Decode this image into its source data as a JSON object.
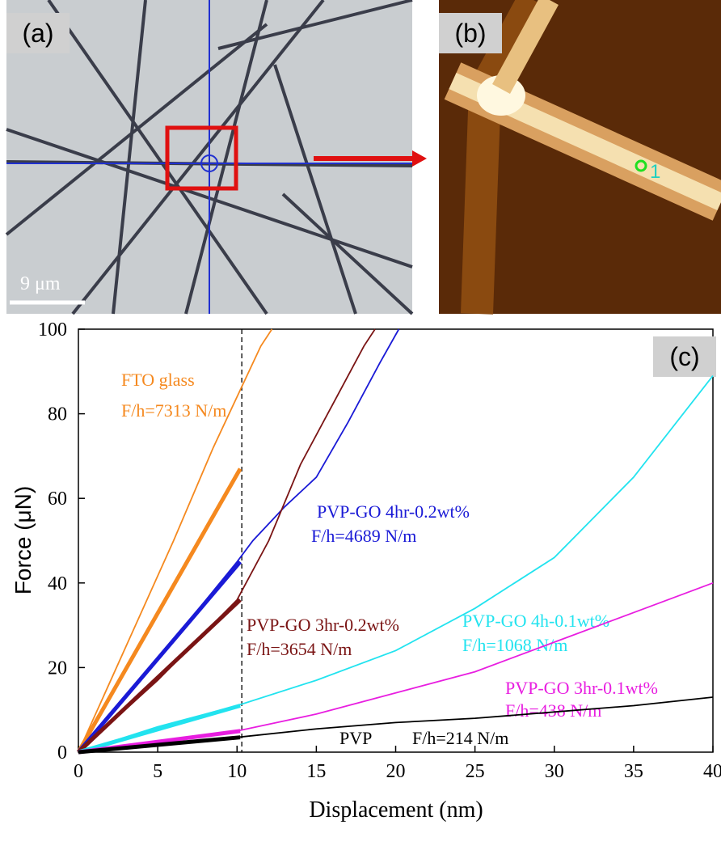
{
  "panels": {
    "a": "(a)",
    "b": "(b)",
    "c": "(c)",
    "scale_bar": "9 μm",
    "marker": "1"
  },
  "chart_data": {
    "type": "line",
    "x_label": "Displacement (nm)",
    "y_label": "Force (μN)",
    "xlim": [
      0,
      40
    ],
    "ylim": [
      0,
      100
    ],
    "xticks": [
      0,
      5,
      10,
      15,
      20,
      25,
      30,
      35,
      40
    ],
    "yticks": [
      0,
      20,
      40,
      60,
      80,
      100
    ],
    "reference_x": 10.3,
    "series": [
      {
        "name": "FTO glass",
        "annotation": "F/h=7313 N/m",
        "color": "#f5891f",
        "x": [
          0,
          3,
          6,
          8.5,
          9.5,
          10.5,
          11.5,
          12.2
        ],
        "values": [
          0,
          25,
          50,
          72,
          80,
          88,
          96,
          100
        ],
        "fit_x": [
          0,
          10.2
        ],
        "fit_values": [
          0,
          67
        ]
      },
      {
        "name": "PVP-GO 4hr-0.2wt%",
        "annotation": "F/h=4689 N/m",
        "color": "#1a1ad6",
        "x": [
          0,
          5,
          10,
          11,
          13,
          15,
          17,
          19,
          20.2
        ],
        "values": [
          0,
          22,
          45,
          50,
          58,
          65,
          78,
          92,
          100
        ],
        "fit_x": [
          0,
          10.2
        ],
        "fit_values": [
          0,
          45
        ]
      },
      {
        "name": "PVP-GO 3hr-0.2wt%",
        "annotation": "F/h=3654 N/m",
        "color": "#7a1414",
        "x": [
          0,
          5,
          10,
          12,
          14,
          16,
          18,
          18.7
        ],
        "values": [
          0,
          17,
          36,
          50,
          68,
          82,
          96,
          100
        ],
        "fit_x": [
          0,
          10.2
        ],
        "fit_values": [
          0,
          36
        ]
      },
      {
        "name": "PVP-GO 4h-0.1wt%",
        "annotation": "F/h=1068 N/m",
        "color": "#22e3ef",
        "x": [
          0,
          5,
          10,
          15,
          20,
          25,
          30,
          35,
          40
        ],
        "values": [
          0,
          6,
          11,
          17,
          24,
          34,
          46,
          65,
          89
        ],
        "fit_x": [
          0,
          10.2
        ],
        "fit_values": [
          0,
          11
        ]
      },
      {
        "name": "PVP-GO 3hr-0.1wt%",
        "annotation": "F/h=438 N/m",
        "color": "#e81ee0",
        "x": [
          0,
          10,
          15,
          20,
          25,
          30,
          35,
          40
        ],
        "values": [
          0,
          5,
          9,
          14,
          19,
          26,
          33,
          40
        ],
        "fit_x": [
          0,
          10.2
        ],
        "fit_values": [
          0,
          5
        ]
      },
      {
        "name": "PVP",
        "annotation": "F/h=214 N/m",
        "color": "#000000",
        "x": [
          0,
          10,
          15,
          20,
          25,
          30,
          35,
          40
        ],
        "values": [
          0,
          3.5,
          5.5,
          7,
          8,
          9.5,
          11,
          13
        ],
        "fit_x": [
          0,
          10.2
        ],
        "fit_values": [
          0,
          3.5
        ]
      }
    ]
  }
}
